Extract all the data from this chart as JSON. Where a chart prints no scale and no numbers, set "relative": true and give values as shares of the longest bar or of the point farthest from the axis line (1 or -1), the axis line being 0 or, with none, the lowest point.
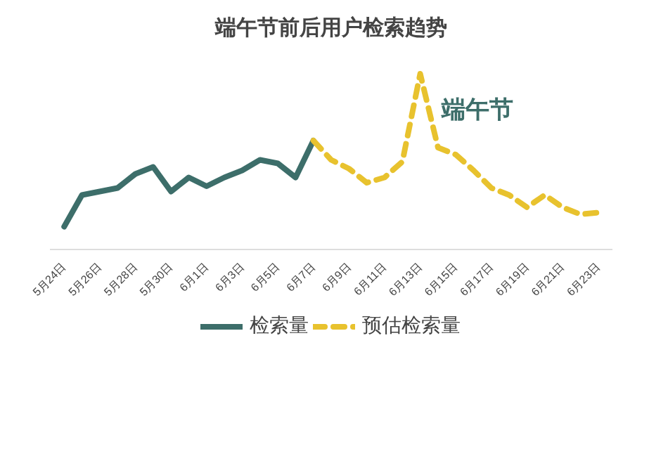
{
  "chart_data": {
    "type": "line",
    "title": "端午节前后用户检索趋势",
    "relative": true,
    "categories": [
      "5月24日",
      null,
      "5月26日",
      null,
      "5月28日",
      null,
      "5月30日",
      null,
      "6月1日",
      null,
      "6月3日",
      null,
      "6月5日",
      null,
      "6月7日",
      null,
      "6月9日",
      null,
      "6月11日",
      null,
      "6月13日",
      null,
      "6月15日",
      null,
      "6月17日",
      null,
      "6月19日",
      null,
      "6月21日",
      null,
      "6月23日"
    ],
    "series": [
      {
        "name": "检索量",
        "color": "#3d6e6a",
        "line_style": "solid",
        "values": [
          0.13,
          0.31,
          0.33,
          0.35,
          0.43,
          0.47,
          0.33,
          0.41,
          0.36,
          0.41,
          0.45,
          0.51,
          0.49,
          0.41,
          0.62,
          null,
          null,
          null,
          null,
          null,
          null,
          null,
          null,
          null,
          null,
          null,
          null,
          null,
          null,
          null,
          null
        ]
      },
      {
        "name": "预估检索量",
        "color": "#e8c22e",
        "line_style": "dashed",
        "values": [
          null,
          null,
          null,
          null,
          null,
          null,
          null,
          null,
          null,
          null,
          null,
          null,
          null,
          null,
          0.62,
          0.51,
          0.46,
          0.38,
          0.41,
          0.5,
          1.0,
          0.58,
          0.54,
          0.45,
          0.35,
          0.31,
          0.24,
          0.31,
          0.24,
          0.2,
          0.21
        ]
      }
    ],
    "annotations": [
      "端午节"
    ],
    "legend": "bottom",
    "grid": false
  }
}
